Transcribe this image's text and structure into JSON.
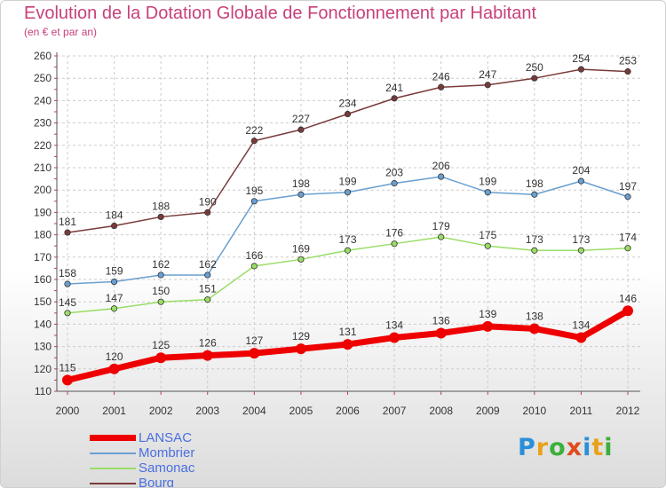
{
  "title": "Evolution de la Dotation Globale de Fonctionnement par Habitant",
  "subtitle": "(en € et par an)",
  "logo": {
    "text": "Proxiti",
    "letters": [
      "P",
      "r",
      "o",
      "x",
      "i",
      "t",
      "i"
    ],
    "colors": [
      "#2a8fd8",
      "#e8a21a",
      "#3caf3c",
      "#e04a1f",
      "#2a8fd8",
      "#e8a21a",
      "#3caf3c"
    ]
  },
  "chart_data": {
    "type": "line",
    "title": "Evolution de la Dotation Globale de Fonctionnement par Habitant",
    "subtitle": "(en € et par an)",
    "xlabel": "",
    "ylabel": "",
    "ylim": [
      110,
      260
    ],
    "yticks": [
      110,
      120,
      130,
      140,
      150,
      160,
      170,
      180,
      190,
      200,
      210,
      220,
      230,
      240,
      250,
      260
    ],
    "x": [
      "2000",
      "2001",
      "2002",
      "2003",
      "2004",
      "2005",
      "2006",
      "2007",
      "2008",
      "2009",
      "2010",
      "2011",
      "2012"
    ],
    "grid": true,
    "legend_position": "bottom-left",
    "series": [
      {
        "name": "LANSAC",
        "color": "#ee0000",
        "values": [
          115,
          120,
          125,
          126,
          127,
          129,
          131,
          134,
          136,
          139,
          138,
          134,
          146
        ]
      },
      {
        "name": "Mombrier",
        "color": "#6a9fd0",
        "values": [
          158,
          159,
          162,
          162,
          195,
          198,
          199,
          203,
          206,
          199,
          198,
          204,
          197
        ]
      },
      {
        "name": "Samonac",
        "color": "#99dd66",
        "values": [
          145,
          147,
          150,
          151,
          166,
          169,
          173,
          176,
          179,
          175,
          173,
          173,
          174
        ]
      },
      {
        "name": "Bourg",
        "color": "#7a3a3a",
        "values": [
          181,
          184,
          188,
          190,
          222,
          227,
          234,
          241,
          246,
          247,
          250,
          254,
          253
        ]
      }
    ]
  }
}
